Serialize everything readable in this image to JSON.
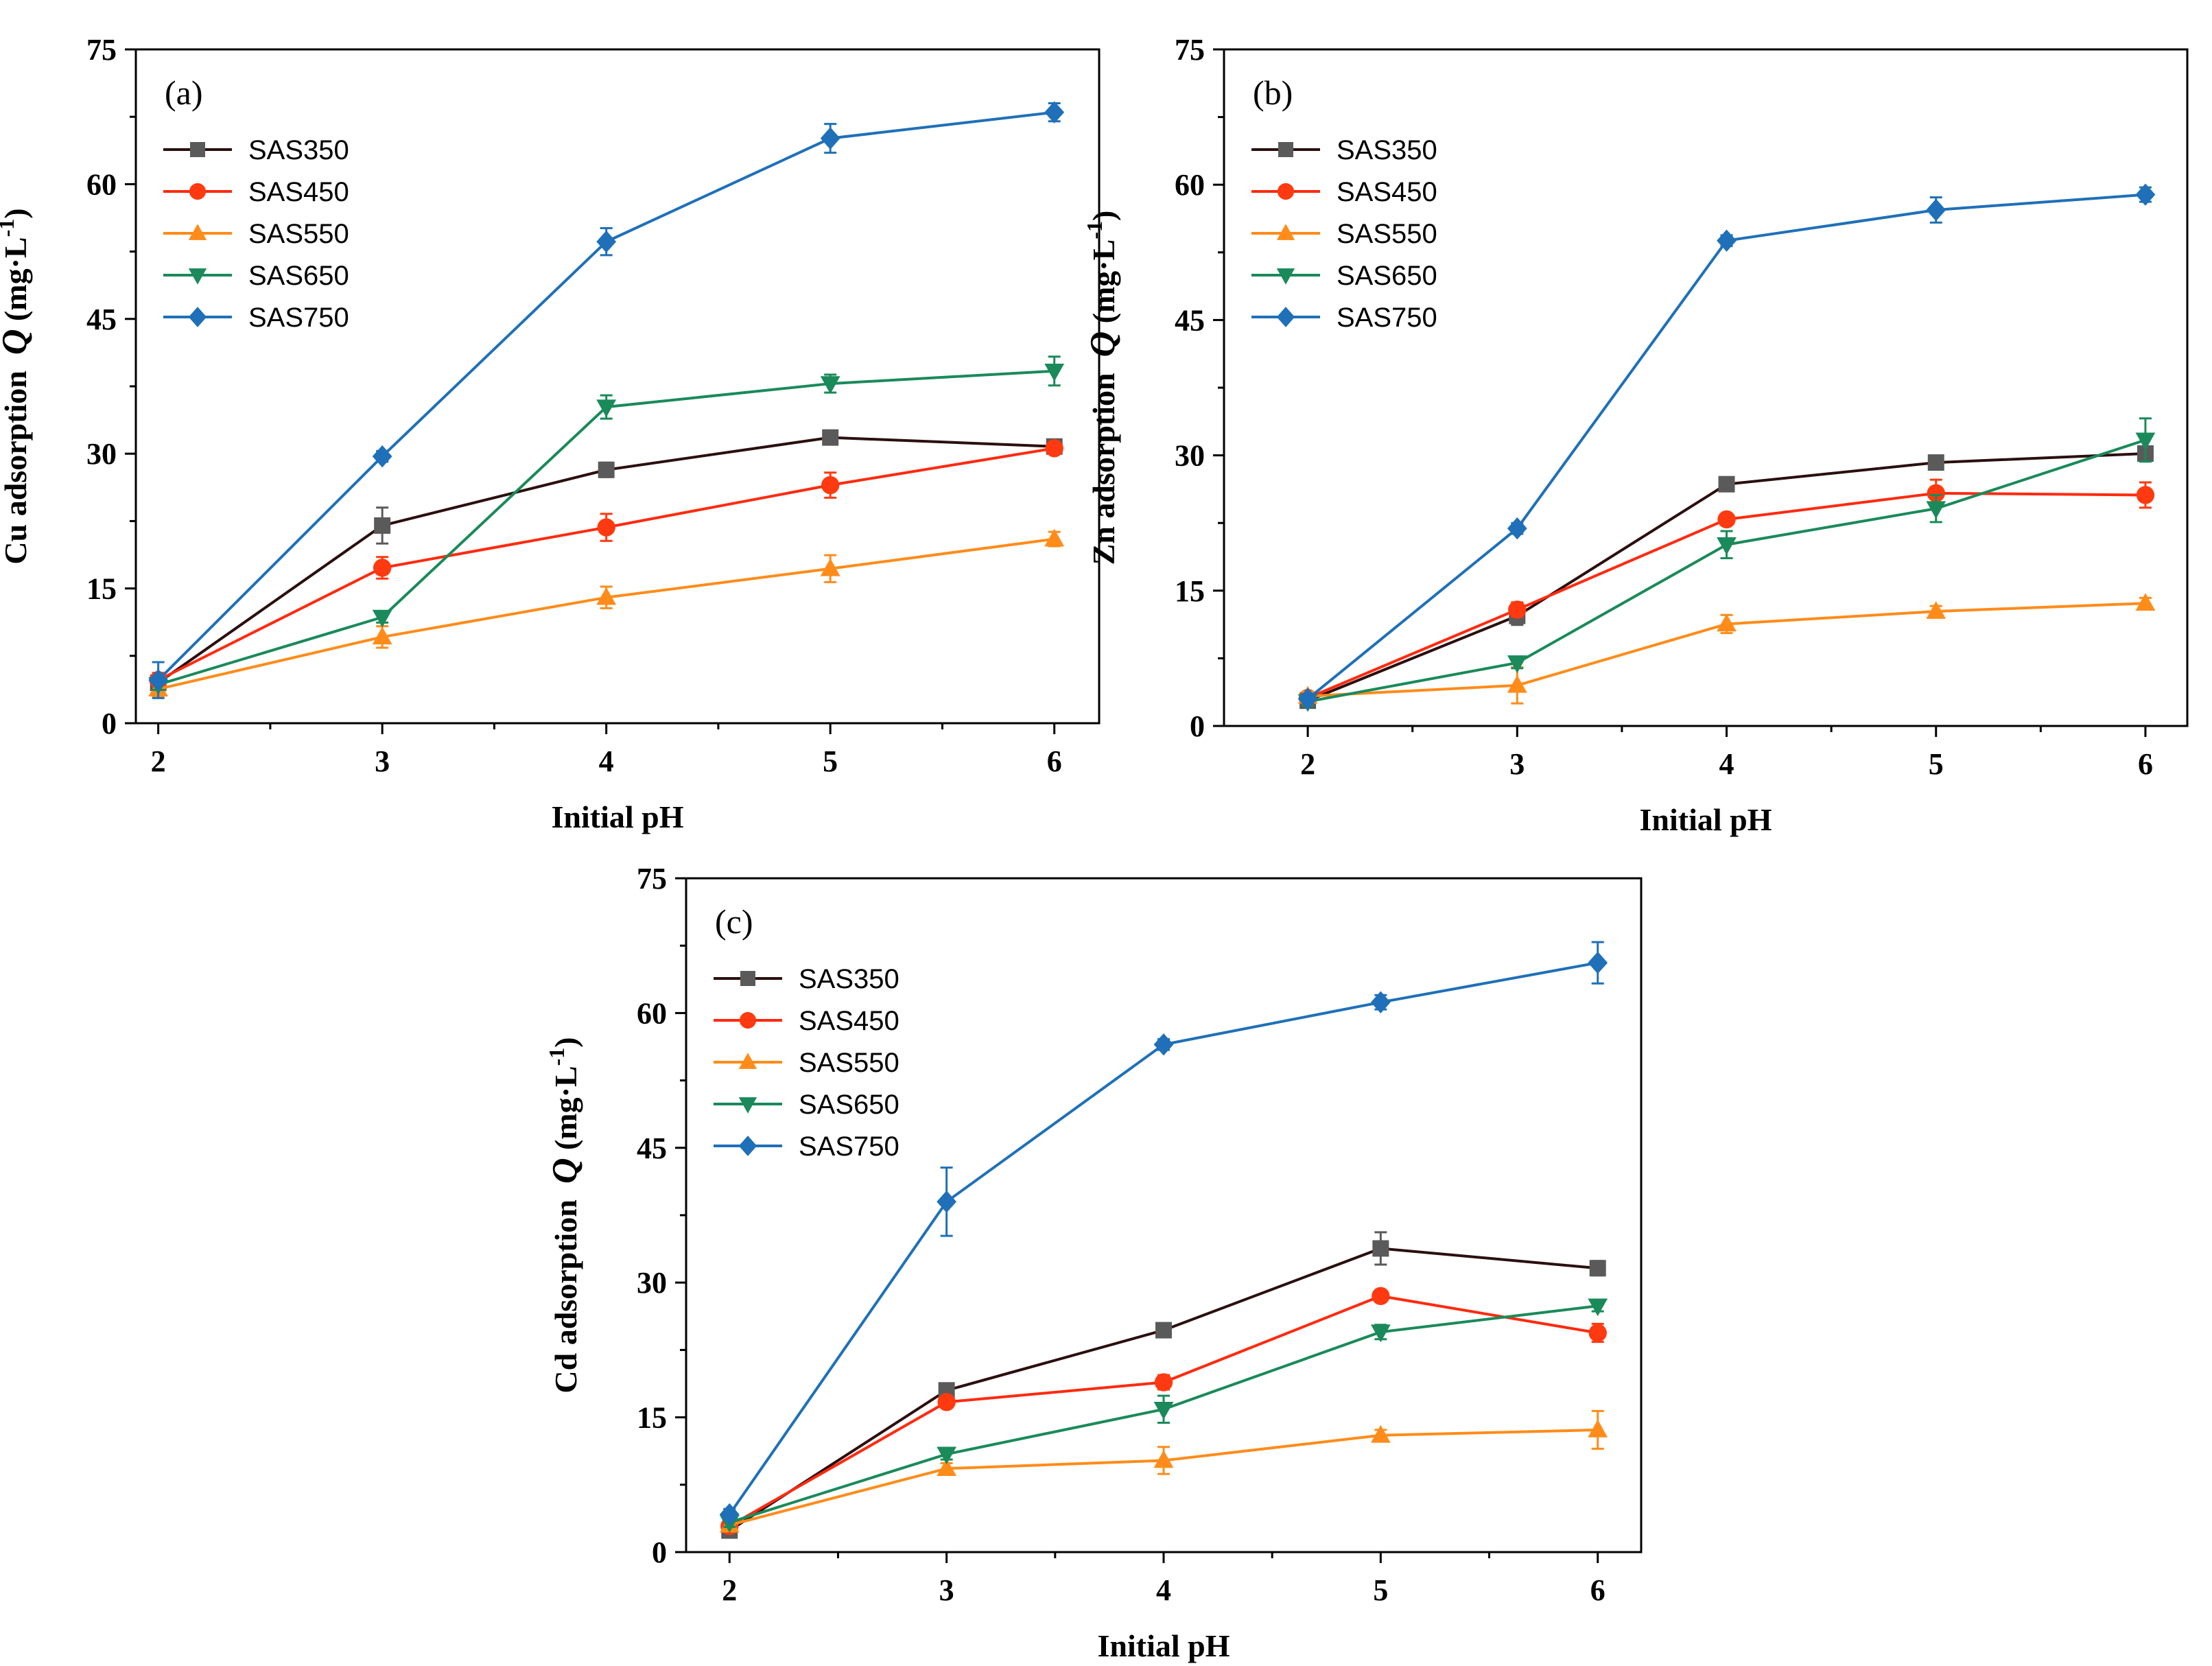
{
  "figure": {
    "panels": [
      "panel_a",
      "panel_b",
      "panel_c"
    ]
  },
  "chart_data": [
    {
      "id": "panel_a",
      "type": "line",
      "panel_label": "(a)",
      "xlabel": "Initial pH",
      "ylabel": "Cu adsorption  Q (mg·L⁻¹)",
      "ylabel_prefix": "Cu adsorption",
      "ylabel_q": "Q",
      "ylabel_unit": "(mg·L",
      "ylabel_exp": "-1",
      "ylabel_close": ")",
      "x": [
        2,
        3,
        4,
        5,
        6
      ],
      "xticks": [
        2,
        3,
        4,
        5,
        6
      ],
      "yticks": [
        0,
        15,
        30,
        45,
        60,
        75
      ],
      "xlim": [
        1.9,
        6.2
      ],
      "ylim": [
        0,
        75
      ],
      "legend_position": "top-left",
      "series": [
        {
          "name": "SAS350",
          "marker": "square",
          "line_color": "#2b0f0f",
          "marker_color": "#5a5a5a",
          "values": [
            4.5,
            22.0,
            28.2,
            31.8,
            30.8
          ],
          "errors": [
            0.6,
            2.0,
            0.8,
            0.6,
            0.6
          ]
        },
        {
          "name": "SAS450",
          "marker": "circle",
          "line_color": "#ff2a0f",
          "marker_color": "#ff3a10",
          "values": [
            4.8,
            17.3,
            21.8,
            26.5,
            30.6
          ],
          "errors": [
            0.8,
            1.2,
            1.5,
            1.4,
            0.6
          ]
        },
        {
          "name": "SAS550",
          "marker": "triangle-up",
          "line_color": "#ff8c1a",
          "marker_color": "#ff8c1a",
          "values": [
            3.8,
            9.6,
            14.0,
            17.2,
            20.5
          ],
          "errors": [
            0.8,
            1.2,
            1.2,
            1.5,
            0.8
          ]
        },
        {
          "name": "SAS650",
          "marker": "triangle-down",
          "line_color": "#1a8a5a",
          "marker_color": "#1a8a5a",
          "values": [
            4.3,
            11.8,
            35.2,
            37.8,
            39.2
          ],
          "errors": [
            0.6,
            0.6,
            1.3,
            1.0,
            1.6
          ]
        },
        {
          "name": "SAS750",
          "marker": "diamond",
          "line_color": "#1f70b8",
          "marker_color": "#1f70b8",
          "values": [
            4.8,
            29.7,
            53.6,
            65.1,
            68.0
          ],
          "errors": [
            2.0,
            0.6,
            1.5,
            1.6,
            1.0
          ]
        }
      ]
    },
    {
      "id": "panel_b",
      "type": "line",
      "panel_label": "(b)",
      "xlabel": "Initial pH",
      "ylabel": "Zn adsorption  Q (mg·L⁻¹)",
      "ylabel_prefix": "Zn adsorption",
      "ylabel_q": "Q",
      "ylabel_unit": "(mg·L",
      "ylabel_exp": "-1",
      "ylabel_close": ")",
      "x": [
        2,
        3,
        4,
        5,
        6
      ],
      "xticks": [
        2,
        3,
        4,
        5,
        6
      ],
      "yticks": [
        0,
        15,
        30,
        45,
        60,
        75
      ],
      "xlim": [
        1.6,
        6.2
      ],
      "ylim": [
        0,
        75
      ],
      "legend_position": "top-left",
      "series": [
        {
          "name": "SAS350",
          "marker": "square",
          "line_color": "#2b0f0f",
          "marker_color": "#5a5a5a",
          "values": [
            2.8,
            12.2,
            26.8,
            29.2,
            30.2
          ],
          "errors": [
            0.5,
            1.0,
            0.6,
            0.6,
            0.8
          ]
        },
        {
          "name": "SAS450",
          "marker": "circle",
          "line_color": "#ff2a0f",
          "marker_color": "#ff3a10",
          "values": [
            3.1,
            12.9,
            22.9,
            25.8,
            25.6
          ],
          "errors": [
            0.5,
            0.8,
            0.6,
            1.5,
            1.4
          ]
        },
        {
          "name": "SAS550",
          "marker": "triangle-up",
          "line_color": "#ff8c1a",
          "marker_color": "#ff8c1a",
          "values": [
            3.3,
            4.5,
            11.3,
            12.7,
            13.6
          ],
          "errors": [
            0.5,
            2.0,
            1.0,
            0.6,
            0.6
          ]
        },
        {
          "name": "SAS650",
          "marker": "triangle-down",
          "line_color": "#1a8a5a",
          "marker_color": "#1a8a5a",
          "values": [
            2.7,
            7.0,
            20.1,
            24.1,
            31.7
          ],
          "errors": [
            0.5,
            0.6,
            1.5,
            1.5,
            2.4
          ]
        },
        {
          "name": "SAS750",
          "marker": "diamond",
          "line_color": "#1f70b8",
          "marker_color": "#1f70b8",
          "values": [
            3.0,
            21.9,
            53.8,
            57.2,
            58.9
          ],
          "errors": [
            0.5,
            0.6,
            0.6,
            1.4,
            0.8
          ]
        }
      ]
    },
    {
      "id": "panel_c",
      "type": "line",
      "panel_label": "(c)",
      "xlabel": "Initial pH",
      "ylabel": "Cd adsorption  Q (mg·L⁻¹)",
      "ylabel_prefix": "Cd adsorption",
      "ylabel_q": "Q",
      "ylabel_unit": "(mg·L",
      "ylabel_exp": "-1",
      "ylabel_close": ")",
      "x": [
        2,
        3,
        4,
        5,
        6
      ],
      "xticks": [
        2,
        3,
        4,
        5,
        6
      ],
      "yticks": [
        0,
        15,
        30,
        45,
        60,
        75
      ],
      "xlim": [
        1.8,
        6.2
      ],
      "ylim": [
        0,
        75
      ],
      "legend_position": "top-left",
      "series": [
        {
          "name": "SAS350",
          "marker": "square",
          "line_color": "#2b0f0f",
          "marker_color": "#5a5a5a",
          "values": [
            2.4,
            18.0,
            24.7,
            33.8,
            31.6
          ],
          "errors": [
            0.5,
            0.6,
            0.6,
            1.8,
            0.8
          ]
        },
        {
          "name": "SAS450",
          "marker": "circle",
          "line_color": "#ff2a0f",
          "marker_color": "#ff3a10",
          "values": [
            2.9,
            16.7,
            18.9,
            28.5,
            24.4
          ],
          "errors": [
            0.5,
            0.6,
            0.8,
            0.6,
            1.0
          ]
        },
        {
          "name": "SAS550",
          "marker": "triangle-up",
          "line_color": "#ff8c1a",
          "marker_color": "#ff8c1a",
          "values": [
            3.0,
            9.3,
            10.2,
            13.0,
            13.6
          ],
          "errors": [
            0.5,
            0.6,
            1.5,
            0.6,
            2.1
          ]
        },
        {
          "name": "SAS650",
          "marker": "triangle-down",
          "line_color": "#1a8a5a",
          "marker_color": "#1a8a5a",
          "values": [
            3.3,
            10.9,
            15.9,
            24.5,
            27.4
          ],
          "errors": [
            0.5,
            0.6,
            1.5,
            0.8,
            0.6
          ]
        },
        {
          "name": "SAS750",
          "marker": "diamond",
          "line_color": "#1f70b8",
          "marker_color": "#1f70b8",
          "values": [
            4.2,
            39.0,
            56.5,
            61.2,
            65.6
          ],
          "errors": [
            0.6,
            3.8,
            0.6,
            0.8,
            2.3
          ]
        }
      ]
    }
  ]
}
